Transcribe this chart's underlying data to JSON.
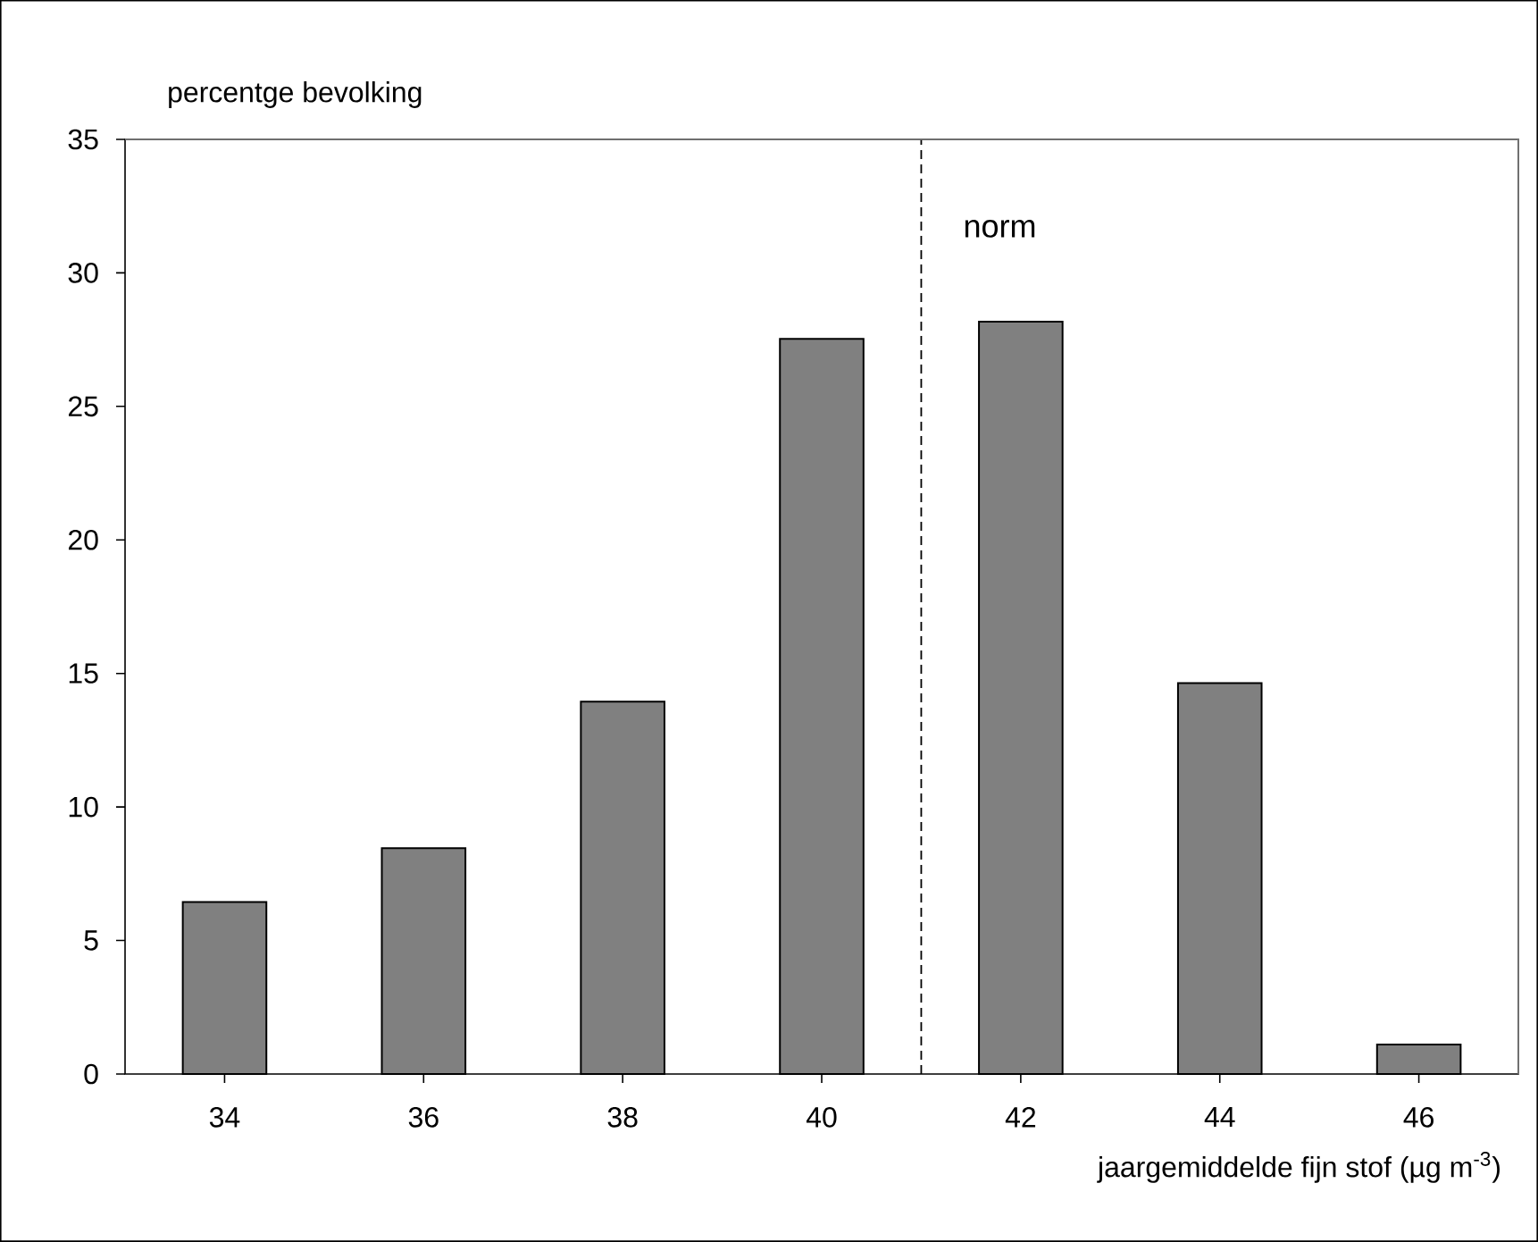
{
  "chart_data": {
    "type": "bar",
    "x": [
      34,
      36,
      38,
      40,
      42,
      44,
      46
    ],
    "values": [
      6.44,
      8.46,
      13.94,
      27.53,
      28.17,
      14.64,
      1.1
    ],
    "color": "#808080",
    "xlim": [
      33,
      47
    ],
    "xticks": [
      34,
      36,
      38,
      40,
      42,
      44,
      46
    ],
    "ylim": [
      0,
      35
    ],
    "yticks": [
      0,
      5,
      10,
      15,
      20,
      25,
      30,
      35
    ],
    "ylabel": "percentge bevolking",
    "xlabel": "jaargemiddelde fijn stof (µg m$^{-3}$)",
    "ref_lines": [
      {
        "axis": "x",
        "value": 41,
        "label": "norm",
        "line_style": "dashed"
      }
    ],
    "grid": false
  }
}
